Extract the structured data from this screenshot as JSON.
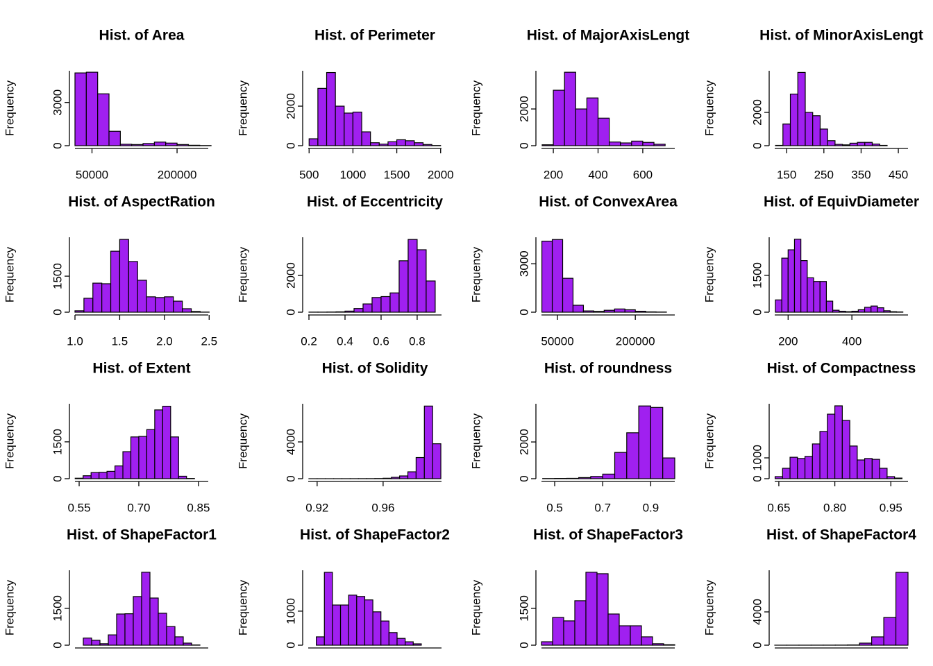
{
  "chart_data": [
    {
      "type": "histogram",
      "title": "Hist. of Area",
      "ylabel": "Frequency",
      "color": "#a020f0",
      "bins": [
        20000,
        40000,
        60000,
        80000,
        100000,
        120000,
        140000,
        160000,
        180000,
        200000,
        220000,
        240000,
        260000
      ],
      "counts": [
        5050,
        5100,
        3600,
        1000,
        100,
        80,
        150,
        250,
        180,
        80,
        30,
        10
      ],
      "xlim": [
        20000,
        255000
      ],
      "xticks": [
        50000,
        200000
      ],
      "ylim": [
        0,
        5200
      ],
      "yticks": [
        0,
        3000
      ]
    },
    {
      "type": "histogram",
      "title": "Hist. of Perimeter",
      "ylabel": "Frequency",
      "color": "#a020f0",
      "bins": [
        500,
        600,
        700,
        800,
        900,
        1000,
        1100,
        1200,
        1300,
        1400,
        1500,
        1600,
        1700,
        1800,
        1900,
        2000
      ],
      "counts": [
        350,
        2900,
        3700,
        2000,
        1650,
        1700,
        700,
        150,
        80,
        200,
        300,
        250,
        150,
        60,
        10
      ],
      "xlim": [
        490,
        2010
      ],
      "xticks": [
        500,
        1000,
        1500,
        2000
      ],
      "ylim": [
        0,
        3790
      ],
      "yticks": [
        0,
        2000
      ]
    },
    {
      "type": "histogram",
      "title": "Hist. of MajorAxisLengt",
      "ylabel": "Frequency",
      "color": "#a020f0",
      "bins": [
        150,
        200,
        250,
        300,
        350,
        400,
        450,
        500,
        550,
        600,
        650,
        700
      ],
      "counts": [
        50,
        3020,
        4000,
        2000,
        2600,
        1500,
        200,
        150,
        250,
        180,
        80
      ],
      "xlim": [
        147,
        743
      ],
      "xticks": [
        200,
        400,
        600
      ],
      "ylim": [
        0,
        4080
      ],
      "yticks": [
        0,
        2000
      ]
    },
    {
      "type": "histogram",
      "title": "Hist. of MinorAxisLengt",
      "ylabel": "Frequency",
      "color": "#a020f0",
      "bins": [
        120,
        140,
        160,
        180,
        200,
        220,
        240,
        260,
        280,
        300,
        320,
        340,
        360,
        380,
        400,
        420
      ],
      "counts": [
        20,
        1300,
        3100,
        4400,
        2000,
        1800,
        1000,
        300,
        80,
        50,
        150,
        200,
        200,
        100,
        20
      ],
      "xlim": [
        118,
        476
      ],
      "xticks": [
        150,
        250,
        350,
        450
      ],
      "ylim": [
        0,
        4500
      ],
      "yticks": [
        0,
        2000
      ]
    },
    {
      "type": "histogram",
      "title": "Hist. of AspectRation",
      "ylabel": "Frequency",
      "color": "#a020f0",
      "bins": [
        1.0,
        1.1,
        1.2,
        1.3,
        1.4,
        1.5,
        1.6,
        1.7,
        1.8,
        1.9,
        2.0,
        2.1,
        2.2,
        2.3,
        2.4,
        2.5
      ],
      "counts": [
        60,
        580,
        1210,
        1185,
        2540,
        3030,
        2110,
        1330,
        640,
        610,
        640,
        460,
        145,
        30,
        5
      ],
      "xlim": [
        1.0,
        2.49
      ],
      "xticks": [
        {
          "value": 1.0,
          "label": "1.0"
        },
        1.5,
        {
          "value": 2.0,
          "label": "2.0"
        },
        2.5
      ],
      "ylim": [
        0,
        3120
      ],
      "yticks": [
        0,
        1500
      ]
    },
    {
      "type": "histogram",
      "title": "Hist. of Eccentricity",
      "ylabel": "Frequency",
      "color": "#a020f0",
      "bins": [
        0.2,
        0.25,
        0.3,
        0.35,
        0.4,
        0.45,
        0.5,
        0.55,
        0.6,
        0.65,
        0.7,
        0.75,
        0.8,
        0.85,
        0.9
      ],
      "counts": [
        5,
        5,
        10,
        20,
        60,
        200,
        450,
        800,
        850,
        1050,
        2800,
        3960,
        3400,
        1700
      ],
      "xlim": [
        0.196,
        0.935
      ],
      "xticks": [
        0.2,
        0.4,
        0.6,
        0.8
      ],
      "ylim": [
        0,
        4080
      ],
      "yticks": [
        0,
        2000
      ]
    },
    {
      "type": "histogram",
      "title": "Hist. of ConvexArea",
      "ylabel": "Frequency",
      "color": "#a020f0",
      "bins": [
        20000,
        40000,
        60000,
        80000,
        100000,
        120000,
        140000,
        160000,
        180000,
        200000,
        220000,
        240000,
        260000
      ],
      "counts": [
        4400,
        4500,
        2100,
        430,
        80,
        50,
        120,
        200,
        150,
        60,
        20,
        10
      ],
      "xlim": [
        19200,
        276000
      ],
      "xticks": [
        50000,
        200000
      ],
      "ylim": [
        0,
        4640
      ],
      "yticks": [
        0,
        3000
      ]
    },
    {
      "type": "histogram",
      "title": "Hist. of EquivDiameter",
      "ylabel": "Frequency",
      "color": "#a020f0",
      "bins": [
        160,
        180,
        200,
        220,
        240,
        260,
        280,
        300,
        320,
        340,
        360,
        380,
        400,
        420,
        440,
        460,
        480,
        500,
        520,
        540,
        560
      ],
      "counts": [
        500,
        2200,
        2540,
        2970,
        2100,
        1400,
        1250,
        1250,
        450,
        80,
        40,
        20,
        40,
        100,
        200,
        250,
        180,
        60,
        20,
        10
      ],
      "xlim": [
        158,
        576
      ],
      "xticks": [
        200,
        400
      ],
      "ylim": [
        0,
        3050
      ],
      "yticks": [
        0,
        1500
      ]
    },
    {
      "type": "histogram",
      "title": "Hist. of Extent",
      "ylabel": "Frequency",
      "color": "#a020f0",
      "bins": [
        0.54,
        0.56,
        0.58,
        0.6,
        0.62,
        0.64,
        0.66,
        0.68,
        0.7,
        0.72,
        0.74,
        0.76,
        0.78,
        0.8,
        0.82,
        0.84
      ],
      "counts": [
        20,
        120,
        250,
        260,
        300,
        520,
        1100,
        1700,
        1720,
        2000,
        2800,
        2950,
        1700,
        100,
        10
      ],
      "xlim": [
        0.5395,
        0.8746
      ],
      "xticks": [
        0.55,
        {
          "value": 0.7,
          "label": "0.70"
        },
        0.85
      ],
      "ylim": [
        0,
        3050
      ],
      "yticks": [
        0,
        1500
      ]
    },
    {
      "type": "histogram",
      "title": "Hist. of Solidity",
      "ylabel": "Frequency",
      "color": "#a020f0",
      "bins": [
        0.915,
        0.92,
        0.925,
        0.93,
        0.935,
        0.94,
        0.945,
        0.95,
        0.955,
        0.96,
        0.965,
        0.97,
        0.975,
        0.98,
        0.985,
        0.99,
        0.995
      ],
      "counts": [
        1,
        2,
        2,
        3,
        4,
        5,
        8,
        10,
        20,
        50,
        150,
        300,
        750,
        2300,
        7900,
        3800
      ],
      "xlim": [
        0.9146,
        0.9954
      ],
      "xticks": [
        0.92,
        0.96
      ],
      "ylim": [
        0,
        8150
      ],
      "yticks": [
        0,
        4000
      ]
    },
    {
      "type": "histogram",
      "title": "Hist. of roundness",
      "ylabel": "Frequency",
      "color": "#a020f0",
      "bins": [
        0.45,
        0.5,
        0.55,
        0.6,
        0.65,
        0.7,
        0.75,
        0.8,
        0.85,
        0.9,
        0.95,
        1.0
      ],
      "counts": [
        10,
        15,
        20,
        60,
        120,
        250,
        1430,
        2500,
        3960,
        3880,
        1130
      ],
      "xlim": [
        0.445,
        1.0
      ],
      "xticks": [
        0.5,
        0.7,
        0.9
      ],
      "ylim": [
        0,
        4080
      ],
      "yticks": [
        0,
        2000
      ]
    },
    {
      "type": "histogram",
      "title": "Hist. of Compactness",
      "ylabel": "Frequency",
      "color": "#a020f0",
      "bins": [
        0.64,
        0.66,
        0.68,
        0.7,
        0.72,
        0.74,
        0.76,
        0.78,
        0.8,
        0.82,
        0.84,
        0.86,
        0.88,
        0.9,
        0.92,
        0.94,
        0.96,
        0.98
      ],
      "counts": [
        100,
        500,
        1030,
        970,
        1070,
        1670,
        2270,
        3100,
        3500,
        2800,
        1570,
        900,
        970,
        930,
        500,
        100,
        30
      ],
      "xlim": [
        0.639,
        0.996
      ],
      "xticks": [
        0.65,
        {
          "value": 0.8,
          "label": "0.80"
        },
        0.95
      ],
      "ylim": [
        0,
        3600
      ],
      "yticks": [
        0,
        1000
      ]
    },
    {
      "type": "histogram",
      "title": "Hist. of ShapeFactor1",
      "ylabel": "Frequency",
      "color": "#a020f0",
      "bins": [
        0.0035,
        0.004,
        0.0045,
        0.005,
        0.0055,
        0.006,
        0.0065,
        0.007,
        0.0075,
        0.008,
        0.0085,
        0.009,
        0.0095,
        0.01,
        0.0105
      ],
      "counts": [
        290,
        200,
        60,
        420,
        1270,
        1280,
        1980,
        2970,
        1920,
        1300,
        760,
        340,
        85,
        10
      ],
      "xlim": [
        0.003,
        0.011
      ],
      "ylim": [
        0,
        3050
      ],
      "yticks": [
        0,
        1500
      ]
    },
    {
      "type": "histogram",
      "title": "Hist. of ShapeFactor2",
      "ylabel": "Frequency",
      "color": "#a020f0",
      "bins": [
        0.0006,
        0.0008,
        0.001,
        0.0012,
        0.0014,
        0.0016,
        0.0018,
        0.002,
        0.0022,
        0.0024,
        0.0026,
        0.0028,
        0.003,
        0.0032
      ],
      "counts": [
        245,
        2140,
        1180,
        1180,
        1470,
        1430,
        1330,
        980,
        710,
        370,
        200,
        100,
        40
      ],
      "xlim": [
        0.0004,
        0.0037
      ],
      "ylim": [
        0,
        2200
      ],
      "yticks": [
        0,
        1000
      ]
    },
    {
      "type": "histogram",
      "title": "Hist. of ShapeFactor3",
      "ylabel": "Frequency",
      "color": "#a020f0",
      "bins": [
        0.4,
        0.45,
        0.5,
        0.55,
        0.6,
        0.65,
        0.7,
        0.75,
        0.8,
        0.85,
        0.9,
        0.95,
        1.0
      ],
      "counts": [
        140,
        1130,
        990,
        1810,
        2970,
        2910,
        1270,
        790,
        790,
        340,
        60,
        20
      ],
      "xlim": [
        0.4,
        1.0
      ],
      "ylim": [
        0,
        3050
      ],
      "yticks": [
        0,
        1500
      ]
    },
    {
      "type": "histogram",
      "title": "Hist. of ShapeFactor4",
      "ylabel": "Frequency",
      "color": "#a020f0",
      "bins": [
        0.945,
        0.95,
        0.955,
        0.96,
        0.965,
        0.97,
        0.975,
        0.98,
        0.985,
        0.99,
        0.995,
        1.0
      ],
      "counts": [
        2,
        3,
        5,
        8,
        10,
        15,
        30,
        250,
        1000,
        3330,
        8750
      ],
      "xlim": [
        0.945,
        1.0
      ],
      "ylim": [
        0,
        9000
      ],
      "yticks": [
        0,
        4000
      ]
    }
  ]
}
